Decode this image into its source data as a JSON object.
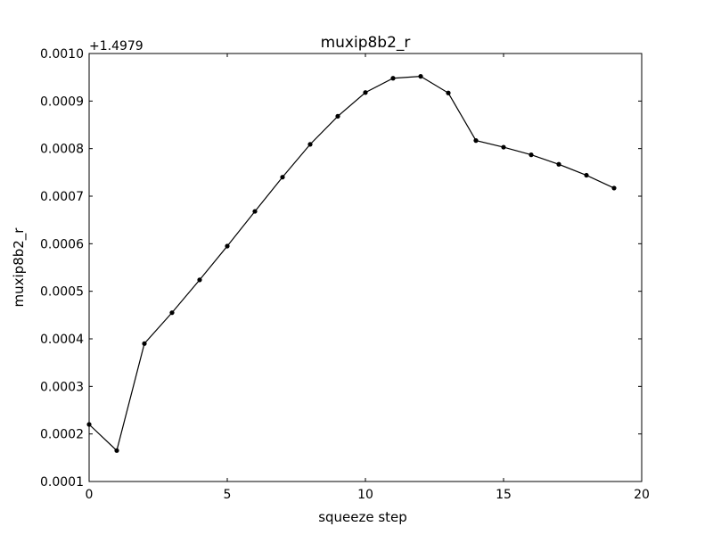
{
  "chart_data": {
    "type": "line",
    "title": "muxip8b2_r",
    "xlabel": "squeeze step",
    "ylabel": "muxip8b2_r",
    "y_offset_label": "+1.4979",
    "xlim": [
      0,
      20
    ],
    "ylim": [
      0.0001,
      0.001
    ],
    "x_ticks": [
      0,
      5,
      10,
      15,
      20
    ],
    "x_tick_labels": [
      "0",
      "5",
      "10",
      "15",
      "20"
    ],
    "y_ticks": [
      0.0001,
      0.0002,
      0.0003,
      0.0004,
      0.0005,
      0.0006,
      0.0007,
      0.0008,
      0.0009,
      0.001
    ],
    "y_tick_labels": [
      "0.0001",
      "0.0002",
      "0.0003",
      "0.0004",
      "0.0005",
      "0.0006",
      "0.0007",
      "0.0008",
      "0.0009",
      "0.0010"
    ],
    "grid": false,
    "line_color": "#000000",
    "marker": "dot",
    "series": [
      {
        "x": [
          0,
          1,
          2,
          3,
          4,
          5,
          6,
          7,
          8,
          9,
          10,
          11,
          12,
          13,
          14,
          15,
          16,
          17,
          18,
          19
        ],
        "values": [
          0.00022,
          0.000165,
          0.00039,
          0.000455,
          0.000524,
          0.000595,
          0.000668,
          0.00074,
          0.000809,
          0.000868,
          0.000918,
          0.000948,
          0.000952,
          0.000917,
          0.000817,
          0.000803,
          0.000787,
          0.000767,
          0.000744,
          0.000717
        ]
      }
    ]
  }
}
